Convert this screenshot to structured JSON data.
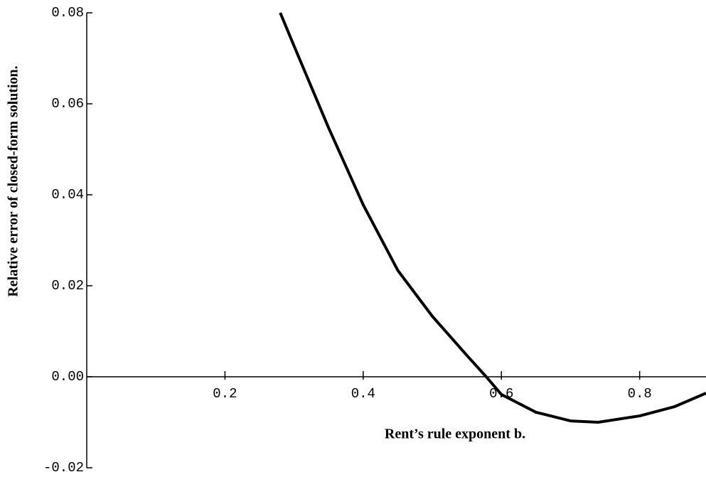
{
  "chart_data": {
    "type": "line",
    "x_label": "Rent’s rule exponent b.",
    "y_label": "Relative error of closed-form solution.",
    "x": [
      0.28,
      0.3,
      0.35,
      0.4,
      0.45,
      0.5,
      0.55,
      0.578,
      0.6,
      0.65,
      0.7,
      0.74,
      0.8,
      0.85,
      0.896
    ],
    "series": [
      {
        "color": "#000000",
        "values": [
          0.08,
          0.0727,
          0.0547,
          0.0378,
          0.0234,
          0.0133,
          0.0047,
          0.0,
          -0.0039,
          -0.0078,
          -0.0097,
          -0.01,
          -0.0086,
          -0.0066,
          -0.0036
        ]
      }
    ],
    "xlim": [
      0,
      0.896
    ],
    "ylim": [
      -0.02,
      0.08
    ],
    "xticks": [
      0.2,
      0.4,
      0.6,
      0.8
    ],
    "yticks": [
      -0.02,
      {
        "value": 0,
        "label": "0.00"
      },
      0.02,
      0.04,
      0.06,
      0.08
    ],
    "grid": false
  }
}
